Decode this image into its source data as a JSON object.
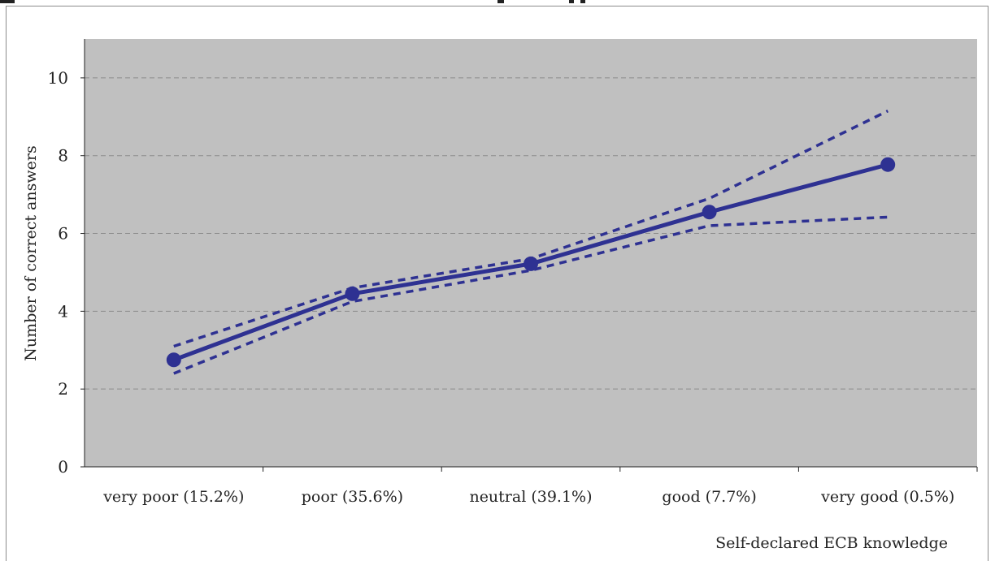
{
  "chart_data": {
    "type": "line",
    "title": "",
    "xlabel": "Self-declared ECB knowledge",
    "ylabel": "Number of correct answers",
    "categories": [
      "very poor (15.2%)",
      "poor (35.6%)",
      "neutral (39.1%)",
      "good (7.7%)",
      "very good (0.5%)"
    ],
    "yticks": [
      "0",
      "2",
      "4",
      "6",
      "8",
      "10"
    ],
    "ylim": [
      0,
      11
    ],
    "grid": true,
    "series": [
      {
        "name": "",
        "style": "solid-markers",
        "values": [
          2.75,
          4.45,
          5.22,
          6.55,
          7.77
        ]
      },
      {
        "name": "",
        "style": "dashed",
        "values": [
          3.1,
          4.6,
          5.35,
          6.9,
          9.15
        ]
      },
      {
        "name": "",
        "style": "dashed",
        "values": [
          2.4,
          4.25,
          5.05,
          6.2,
          6.42
        ]
      }
    ],
    "colors": {
      "series": "#2e3192",
      "plot_bg": "#c0c0c0",
      "grid": "#8c8c8c"
    }
  }
}
